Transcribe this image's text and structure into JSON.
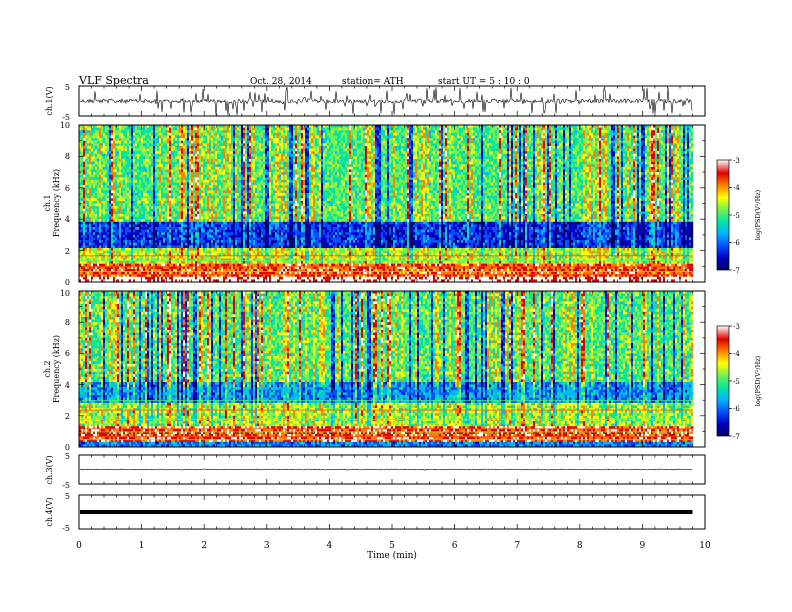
{
  "header": {
    "title": "VLF  Spectra",
    "date": "Oct. 28, 2014",
    "station": "station= ATH",
    "start": "start  UT  =   5  : 10 : 0"
  },
  "chart_data": [
    {
      "type": "line",
      "panel": "ch1-waveform",
      "ylabel": "ch.1(V)",
      "yticks": [
        "5",
        "-5"
      ],
      "ylim": [
        -5,
        5
      ],
      "xlim": [
        0,
        10
      ]
    },
    {
      "type": "heatmap",
      "panel": "ch1-spectrogram",
      "ylabel": "Frequency  (kHz)",
      "channel_label": "ch.1",
      "yticks": [
        "0",
        "2",
        "4",
        "6",
        "8",
        "10"
      ],
      "ylim": [
        0,
        10
      ],
      "xlim": [
        0,
        10
      ],
      "colorbar": {
        "label": "log(PSD(V²/Hz)",
        "ticks": [
          "-3",
          "-4",
          "-5",
          "-6",
          "-7"
        ],
        "range": [
          -7,
          -3
        ]
      }
    },
    {
      "type": "heatmap",
      "panel": "ch2-spectrogram",
      "ylabel": "Frequency  (kHz)",
      "channel_label": "ch.2",
      "yticks": [
        "0",
        "2",
        "4",
        "6",
        "8",
        "10"
      ],
      "ylim": [
        0,
        10
      ],
      "xlim": [
        0,
        10
      ],
      "colorbar": {
        "label": "log(PSD(V²/Hz)",
        "ticks": [
          "-3",
          "-4",
          "-5",
          "-6",
          "-7"
        ],
        "range": [
          -7,
          -3
        ]
      }
    },
    {
      "type": "line",
      "panel": "ch3-waveform",
      "ylabel": "ch.3(V)",
      "yticks": [
        "5",
        "-5"
      ],
      "ylim": [
        -5,
        5
      ],
      "xlim": [
        0,
        10
      ]
    },
    {
      "type": "line",
      "panel": "ch4-waveform",
      "ylabel": "ch.4(V)",
      "yticks": [
        "5",
        "-5"
      ],
      "ylim": [
        -5,
        5
      ],
      "xlim": [
        0,
        10
      ]
    }
  ],
  "xaxis": {
    "label": "Time  (min)",
    "ticks": [
      "0",
      "1",
      "2",
      "3",
      "4",
      "5",
      "6",
      "7",
      "8",
      "9",
      "10"
    ],
    "range": [
      0,
      10
    ],
    "data_end": 9.8
  },
  "colors": {
    "colormap": [
      "#000060",
      "#0000c8",
      "#0050ff",
      "#00b4ff",
      "#00e6a0",
      "#78f050",
      "#ffff00",
      "#ff8000",
      "#e00000",
      "#ffffff"
    ],
    "waveform": "#000000"
  }
}
